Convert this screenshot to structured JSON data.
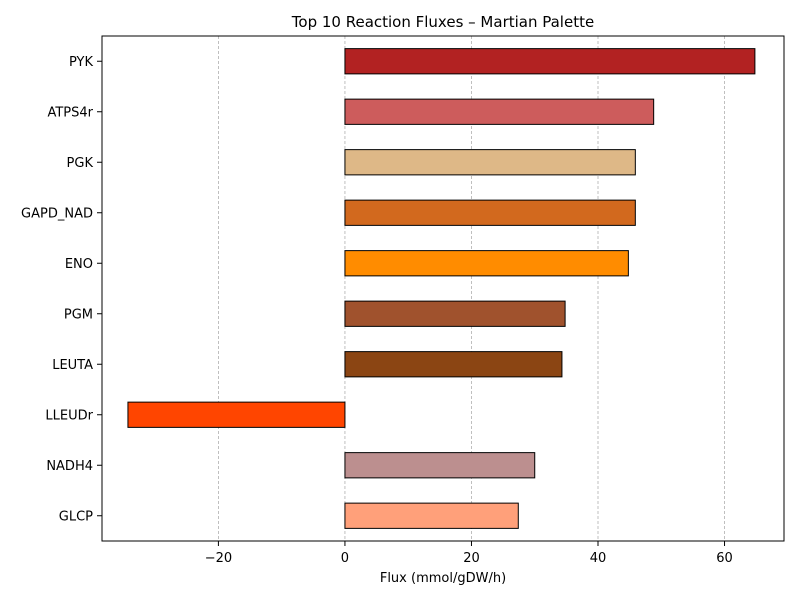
{
  "chart_data": {
    "type": "bar",
    "orientation": "horizontal",
    "title": "Top 10 Reaction Fluxes – Martian Palette",
    "xlabel": "Flux (mmol/gDW/h)",
    "ylabel": "",
    "xlim": [
      -38.4,
      69.4
    ],
    "xticks": [
      -20,
      0,
      20,
      40,
      60
    ],
    "xtick_labels": [
      "−20",
      "0",
      "20",
      "40",
      "60"
    ],
    "grid": "x-dashed",
    "categories": [
      "PYK",
      "ATPS4r",
      "PGK",
      "GAPD_NAD",
      "ENO",
      "PGM",
      "LEUTA",
      "LLEUDr",
      "NADH4",
      "GLCP"
    ],
    "values": [
      64.8,
      48.8,
      45.9,
      45.9,
      44.8,
      34.8,
      34.3,
      -34.3,
      30.0,
      27.4
    ],
    "colors": [
      "#b22222",
      "#cd5c5c",
      "#deb887",
      "#d2691e",
      "#ff8c00",
      "#a0522d",
      "#8b4513",
      "#ff4500",
      "#bc8f8f",
      "#ffa07a"
    ]
  }
}
